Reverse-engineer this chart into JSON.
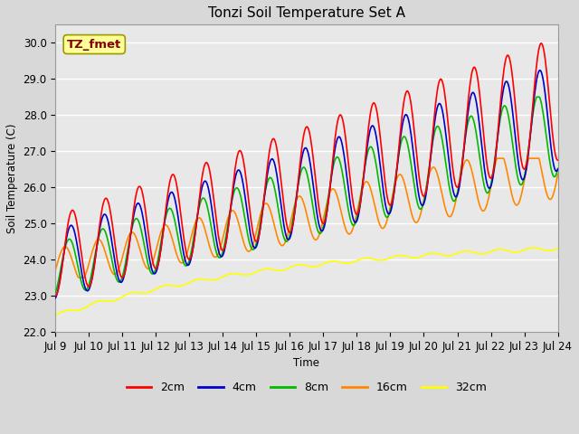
{
  "title": "Tonzi Soil Temperature Set A",
  "xlabel": "Time",
  "ylabel": "Soil Temperature (C)",
  "annotation": "TZ_fmet",
  "ylim": [
    22.0,
    30.5
  ],
  "yticks": [
    22.0,
    23.0,
    24.0,
    25.0,
    26.0,
    27.0,
    28.0,
    29.0,
    30.0
  ],
  "xtick_labels": [
    "Jul 9",
    "Jul 10",
    "Jul 11",
    "Jul 12",
    "Jul 13",
    "Jul 14",
    "Jul 15",
    "Jul 16",
    "Jul 17",
    "Jul 18",
    "Jul 19",
    "Jul 20",
    "Jul 21",
    "Jul 22",
    "Jul 23",
    "Jul 24"
  ],
  "n_days": 15,
  "colors": {
    "2cm": "#ff0000",
    "4cm": "#0000cc",
    "8cm": "#00bb00",
    "16cm": "#ff8800",
    "32cm": "#ffff00"
  },
  "legend_labels": [
    "2cm",
    "4cm",
    "8cm",
    "16cm",
    "32cm"
  ],
  "fig_bg_color": "#d8d8d8",
  "plot_bg_color": "#e8e8e8",
  "annotation_bg": "#ffff99",
  "annotation_border": "#cccc00",
  "annotation_text_color": "#880000",
  "title_fontsize": 11,
  "axis_fontsize": 8.5,
  "line_width": 1.2
}
